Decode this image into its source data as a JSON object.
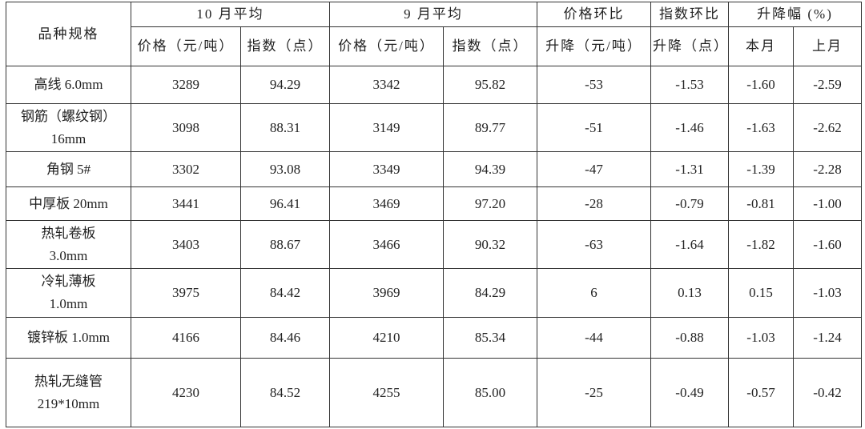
{
  "table": {
    "header_top": {
      "variety": "品种规格",
      "oct_avg": "10 月平均",
      "sep_avg": "9 月平均",
      "price_mom": "价格环比",
      "index_mom": "指数环比",
      "change_pct": "升降幅 (%)"
    },
    "header_sub": [
      "价格（元/吨）",
      "指数（点）",
      "价格（元/吨）",
      "指数（点）",
      "升降（元/吨）",
      "升降（点）",
      "本月",
      "上月"
    ],
    "rows": [
      {
        "name": [
          "高线 6.0mm"
        ],
        "cells": [
          "3289",
          "94.29",
          "3342",
          "95.82",
          "-53",
          "-1.53",
          "-1.60",
          "-2.59"
        ]
      },
      {
        "name": [
          "钢筋（螺纹钢）",
          "16mm"
        ],
        "cells": [
          "3098",
          "88.31",
          "3149",
          "89.77",
          "-51",
          "-1.46",
          "-1.63",
          "-2.62"
        ]
      },
      {
        "name": [
          "角钢 5#"
        ],
        "cells": [
          "3302",
          "93.08",
          "3349",
          "94.39",
          "-47",
          "-1.31",
          "-1.39",
          "-2.28"
        ]
      },
      {
        "name": [
          "中厚板 20mm"
        ],
        "cells": [
          "3441",
          "96.41",
          "3469",
          "97.20",
          "-28",
          "-0.79",
          "-0.81",
          "-1.00"
        ]
      },
      {
        "name": [
          "热轧卷板",
          "3.0mm"
        ],
        "cells": [
          "3403",
          "88.67",
          "3466",
          "90.32",
          "-63",
          "-1.64",
          "-1.82",
          "-1.60"
        ]
      },
      {
        "name": [
          "冷轧薄板",
          "1.0mm"
        ],
        "cells": [
          "3975",
          "84.42",
          "3969",
          "84.29",
          "6",
          "0.13",
          "0.15",
          "-1.03"
        ]
      },
      {
        "name": [
          "镀锌板 1.0mm"
        ],
        "cells": [
          "4166",
          "84.46",
          "4210",
          "85.34",
          "-44",
          "-0.88",
          "-1.03",
          "-1.24"
        ]
      },
      {
        "name": [
          "热轧无缝管",
          "219*10mm"
        ],
        "cells": [
          "4230",
          "84.52",
          "4255",
          "85.00",
          "-25",
          "-0.49",
          "-0.57",
          "-0.42"
        ]
      }
    ]
  }
}
